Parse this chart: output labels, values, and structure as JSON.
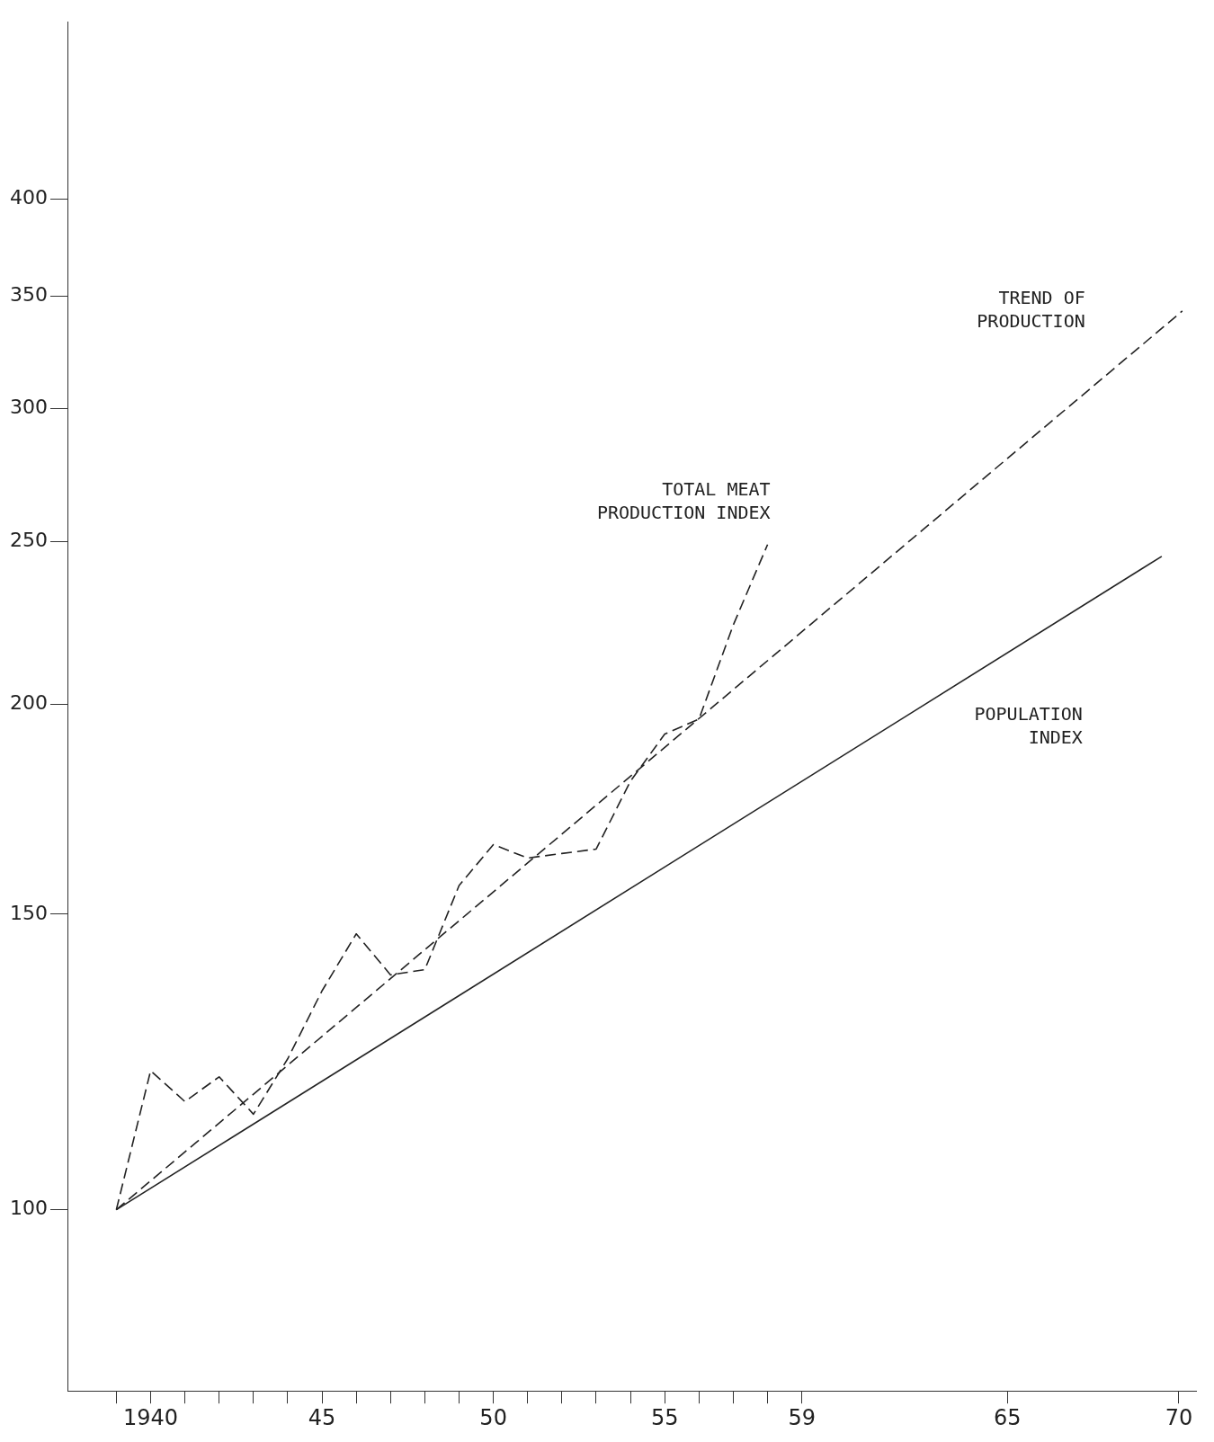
{
  "chart_data": {
    "type": "line",
    "log": "y",
    "grid": false,
    "marker": "none",
    "xlim": [
      1937.6,
      1970.5
    ],
    "ylim": [
      78,
      510
    ],
    "xticks": [
      {
        "value": 1939,
        "label": null
      },
      {
        "value": 1940,
        "label": "1940"
      },
      {
        "value": 1941,
        "label": null
      },
      {
        "value": 1942,
        "label": null
      },
      {
        "value": 1943,
        "label": null
      },
      {
        "value": 1944,
        "label": null
      },
      {
        "value": 1945,
        "label": "45"
      },
      {
        "value": 1946,
        "label": null
      },
      {
        "value": 1947,
        "label": null
      },
      {
        "value": 1948,
        "label": null
      },
      {
        "value": 1949,
        "label": null
      },
      {
        "value": 1950,
        "label": "50"
      },
      {
        "value": 1951,
        "label": null
      },
      {
        "value": 1952,
        "label": null
      },
      {
        "value": 1953,
        "label": null
      },
      {
        "value": 1954,
        "label": null
      },
      {
        "value": 1955,
        "label": "55"
      },
      {
        "value": 1956,
        "label": null
      },
      {
        "value": 1957,
        "label": null
      },
      {
        "value": 1958,
        "label": null
      },
      {
        "value": 1959,
        "label": "59"
      },
      {
        "value": 1965,
        "label": "65"
      },
      {
        "value": 1970,
        "label": "70"
      }
    ],
    "yticks": [
      100,
      150,
      200,
      250,
      300,
      350,
      400
    ],
    "series": [
      {
        "name": "TOTAL MEAT\nPRODUCTION INDEX",
        "color": "#222222",
        "line_style": "dashed",
        "x": [
          1939,
          1940,
          1941,
          1942,
          1943,
          1944,
          1945,
          1946,
          1947,
          1948,
          1949,
          1950,
          1951,
          1952,
          1953,
          1954,
          1955,
          1956,
          1957,
          1958
        ],
        "values": [
          100,
          121,
          116,
          120,
          114,
          123,
          135,
          146,
          138,
          139,
          156,
          165,
          162,
          163,
          164,
          180,
          192,
          196,
          223,
          249
        ]
      },
      {
        "name": "TREND OF\nPRODUCTION",
        "color": "#222222",
        "line_style": "dashed",
        "x": [
          1939,
          1970.1
        ],
        "values": [
          100,
          343
        ]
      },
      {
        "name": "POPULATION\nINDEX",
        "color": "#222222",
        "line_style": "solid",
        "x": [
          1939,
          1969.5
        ],
        "values": [
          100,
          245
        ]
      }
    ]
  }
}
